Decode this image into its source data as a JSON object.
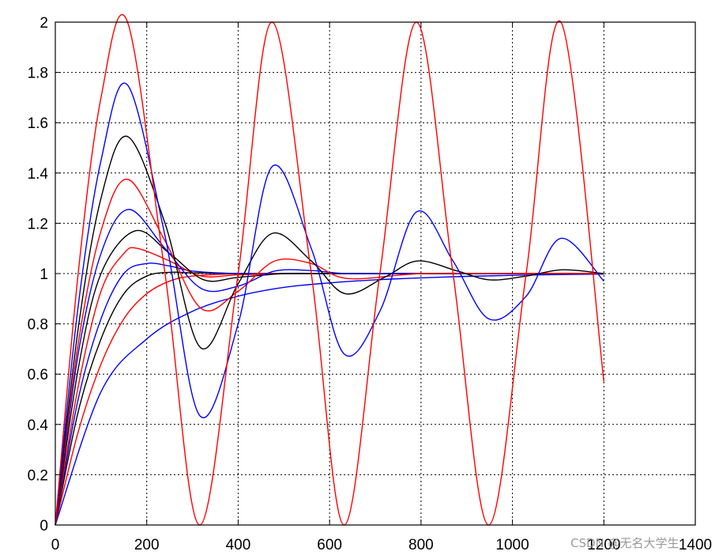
{
  "watermark": "CSDN @无名大学生",
  "chart_data": {
    "type": "line",
    "title": "",
    "xlabel": "",
    "ylabel": "",
    "xlim": [
      0,
      1400
    ],
    "ylim": [
      0,
      2
    ],
    "grid": true,
    "legend": "none",
    "xticks": [
      "0",
      "200",
      "400",
      "600",
      "800",
      "1000",
      "1200",
      "1400"
    ],
    "yticks": [
      "0",
      "0.2",
      "0.4",
      "0.6",
      "0.8",
      "1",
      "1.2",
      "1.4",
      "1.6",
      "1.8",
      "2"
    ],
    "series": [
      {
        "color": "#0000ff",
        "x": [
          0,
          100,
          200,
          300,
          400,
          500,
          600,
          700,
          800,
          900,
          1000,
          1100,
          1200
        ],
        "y": [
          0,
          0.53,
          0.74,
          0.85,
          0.91,
          0.945,
          0.963,
          0.975,
          0.983,
          0.989,
          0.993,
          0.996,
          0.998
        ]
      },
      {
        "color": "#ff0000",
        "x": [
          0,
          50,
          100,
          150,
          200,
          250,
          300,
          400,
          500,
          600,
          800,
          1000,
          1200
        ],
        "y": [
          0,
          0.37,
          0.64,
          0.82,
          0.92,
          0.97,
          0.99,
          1.0,
          1.0,
          1.0,
          1.0,
          1.0,
          1.0
        ]
      },
      {
        "color": "#000000",
        "x": [
          0,
          50,
          100,
          150,
          200,
          250,
          300,
          400,
          500,
          600,
          800,
          1000,
          1200
        ],
        "y": [
          0,
          0.45,
          0.74,
          0.92,
          0.99,
          1.005,
          1.003,
          1.0,
          1.0,
          1.0,
          1.0,
          1.0,
          1.0
        ]
      },
      {
        "color": "#0000ff",
        "x": [
          0,
          50,
          100,
          150,
          200,
          250,
          300,
          400,
          500,
          600,
          800,
          1000,
          1200
        ],
        "y": [
          0,
          0.5,
          0.82,
          1.0,
          1.04,
          1.03,
          1.01,
          1.0,
          1.0,
          1.0,
          1.0,
          1.0,
          1.0
        ]
      },
      {
        "color": "#ff0000",
        "x": [
          0,
          50,
          100,
          150,
          180,
          250,
          320,
          400,
          500,
          600,
          800,
          1000,
          1200
        ],
        "y": [
          0,
          0.55,
          0.93,
          1.08,
          1.1,
          1.05,
          0.99,
          0.995,
          1.0,
          1.0,
          1.0,
          1.0,
          1.0
        ]
      },
      {
        "color": "#000000",
        "x": [
          0,
          50,
          100,
          175,
          250,
          325,
          400,
          500,
          600,
          800,
          1000,
          1200
        ],
        "y": [
          0,
          0.62,
          1.0,
          1.17,
          1.08,
          0.975,
          0.985,
          1.0,
          1.0,
          1.0,
          1.0,
          1.0
        ]
      },
      {
        "color": "#0000ff",
        "x": [
          0,
          50,
          100,
          160,
          240,
          320,
          400,
          480,
          560,
          640,
          800,
          1000,
          1200
        ],
        "y": [
          0,
          0.68,
          1.08,
          1.255,
          1.1,
          0.94,
          0.95,
          1.01,
          1.012,
          1.0,
          1.0,
          1.0,
          1.0
        ]
      },
      {
        "color": "#ff0000",
        "x": [
          0,
          50,
          100,
          158,
          240,
          320,
          400,
          480,
          560,
          640,
          800,
          1000,
          1200
        ],
        "y": [
          0,
          0.72,
          1.17,
          1.375,
          1.13,
          0.86,
          0.93,
          1.05,
          1.04,
          0.98,
          1.0,
          1.0,
          1.0
        ]
      },
      {
        "color": "#000000",
        "x": [
          0,
          50,
          100,
          158,
          240,
          318,
          400,
          475,
          560,
          634,
          720,
          792,
          880,
          950,
          1030,
          1110,
          1200
        ],
        "y": [
          0,
          0.78,
          1.3,
          1.545,
          1.2,
          0.705,
          0.96,
          1.16,
          1.05,
          0.92,
          0.985,
          1.05,
          1.01,
          0.975,
          0.99,
          1.015,
          1.0
        ]
      },
      {
        "color": "#0000ff",
        "x": [
          0,
          50,
          100,
          158,
          240,
          316,
          400,
          474,
          560,
          632,
          710,
          790,
          870,
          948,
          1030,
          1106,
          1200
        ],
        "y": [
          0,
          0.87,
          1.45,
          1.75,
          1.15,
          0.435,
          0.8,
          1.425,
          1.1,
          0.68,
          0.85,
          1.245,
          1.05,
          0.82,
          0.91,
          1.14,
          0.97
        ]
      },
      {
        "color": "#ff0000",
        "x": [
          0,
          50,
          100,
          158,
          240,
          316,
          400,
          474,
          560,
          632,
          710,
          790,
          870,
          948,
          1030,
          1106,
          1200
        ],
        "y": [
          0,
          1.0,
          1.7,
          2.0,
          1.0,
          0.0,
          1.0,
          2.0,
          1.0,
          0.0,
          1.0,
          2.0,
          1.0,
          0.0,
          1.0,
          2.0,
          0.57
        ]
      }
    ]
  }
}
